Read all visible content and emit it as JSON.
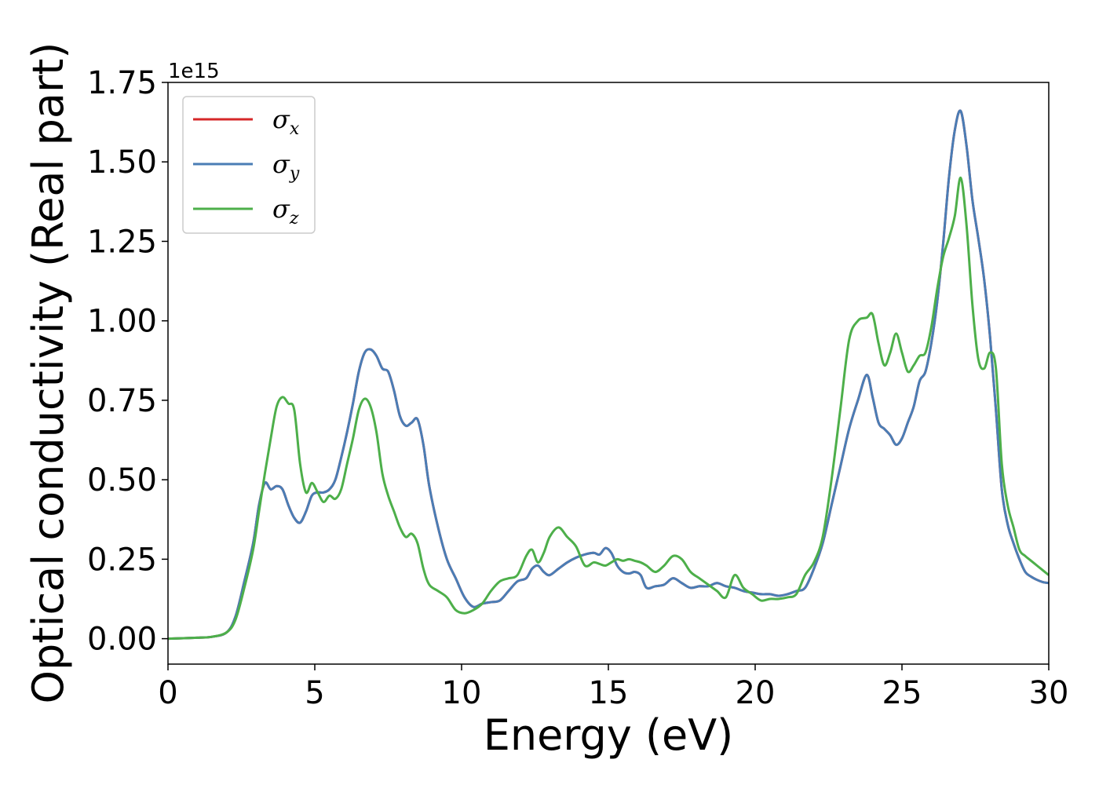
{
  "chart_data": {
    "type": "line",
    "xlabel": "Energy (eV)",
    "ylabel": "Optical conductivity (Real part)",
    "y_offset_text": "1e15",
    "xlim": [
      0,
      30
    ],
    "ylim": [
      -0.08,
      1.75
    ],
    "x_ticks": [
      0,
      5,
      10,
      15,
      20,
      25,
      30
    ],
    "x_tick_labels": [
      "0",
      "5",
      "10",
      "15",
      "20",
      "25",
      "30"
    ],
    "y_ticks": [
      0,
      0.25,
      0.5,
      0.75,
      1.0,
      1.25,
      1.5,
      1.75
    ],
    "y_tick_labels": [
      "0.00",
      "0.25",
      "0.50",
      "0.75",
      "1.00",
      "1.25",
      "1.50",
      "1.75"
    ],
    "grid": false,
    "legend_position": "top-left",
    "series": [
      {
        "name": "σx",
        "symbol": "σ",
        "subscript": "x",
        "color": "#d62728",
        "x": [
          0,
          1,
          1.5,
          2,
          2.3,
          2.6,
          2.9,
          3.1,
          3.3,
          3.5,
          3.7,
          3.9,
          4.1,
          4.3,
          4.5,
          4.7,
          4.9,
          5.1,
          5.3,
          5.5,
          5.7,
          5.9,
          6.1,
          6.3,
          6.5,
          6.7,
          6.9,
          7.1,
          7.3,
          7.5,
          7.7,
          7.9,
          8.1,
          8.3,
          8.5,
          8.7,
          8.9,
          9.2,
          9.5,
          9.8,
          10.1,
          10.4,
          10.7,
          11.0,
          11.3,
          11.6,
          11.9,
          12.2,
          12.4,
          12.6,
          12.8,
          13.0,
          13.3,
          13.6,
          13.9,
          14.2,
          14.5,
          14.7,
          14.9,
          15.1,
          15.3,
          15.5,
          15.7,
          15.9,
          16.1,
          16.3,
          16.6,
          16.9,
          17.2,
          17.5,
          17.8,
          18.1,
          18.4,
          18.7,
          19.0,
          19.3,
          19.6,
          19.9,
          20.2,
          20.5,
          20.8,
          21.1,
          21.4,
          21.7,
          22.0,
          22.3,
          22.6,
          22.9,
          23.2,
          23.5,
          23.8,
          24.0,
          24.2,
          24.4,
          24.6,
          24.8,
          25.0,
          25.2,
          25.4,
          25.6,
          25.8,
          26.0,
          26.2,
          26.4,
          26.6,
          26.8,
          27.0,
          27.2,
          27.4,
          27.6,
          27.8,
          28.0,
          28.2,
          28.4,
          28.6,
          28.8,
          29.0,
          29.2,
          29.4,
          29.6,
          29.8,
          30
        ],
        "values": [
          0,
          0.003,
          0.006,
          0.02,
          0.07,
          0.18,
          0.3,
          0.42,
          0.49,
          0.47,
          0.48,
          0.47,
          0.42,
          0.38,
          0.365,
          0.4,
          0.45,
          0.46,
          0.46,
          0.47,
          0.5,
          0.57,
          0.65,
          0.74,
          0.84,
          0.9,
          0.91,
          0.89,
          0.85,
          0.84,
          0.78,
          0.7,
          0.67,
          0.68,
          0.69,
          0.61,
          0.48,
          0.35,
          0.25,
          0.19,
          0.13,
          0.1,
          0.11,
          0.115,
          0.12,
          0.15,
          0.18,
          0.19,
          0.22,
          0.23,
          0.21,
          0.2,
          0.22,
          0.24,
          0.255,
          0.265,
          0.27,
          0.265,
          0.285,
          0.27,
          0.23,
          0.21,
          0.205,
          0.21,
          0.2,
          0.16,
          0.165,
          0.17,
          0.19,
          0.175,
          0.16,
          0.165,
          0.165,
          0.175,
          0.165,
          0.16,
          0.15,
          0.145,
          0.14,
          0.14,
          0.135,
          0.14,
          0.15,
          0.16,
          0.22,
          0.3,
          0.42,
          0.54,
          0.66,
          0.75,
          0.83,
          0.76,
          0.68,
          0.66,
          0.64,
          0.61,
          0.63,
          0.68,
          0.73,
          0.81,
          0.84,
          0.93,
          1.06,
          1.24,
          1.45,
          1.6,
          1.66,
          1.55,
          1.38,
          1.26,
          1.13,
          0.95,
          0.72,
          0.47,
          0.36,
          0.3,
          0.25,
          0.21,
          0.195,
          0.185,
          0.178,
          0.175
        ]
      },
      {
        "name": "σy",
        "symbol": "σ",
        "subscript": "y",
        "color": "#4a7db5",
        "x": [
          0,
          1,
          1.5,
          2,
          2.3,
          2.6,
          2.9,
          3.1,
          3.3,
          3.5,
          3.7,
          3.9,
          4.1,
          4.3,
          4.5,
          4.7,
          4.9,
          5.1,
          5.3,
          5.5,
          5.7,
          5.9,
          6.1,
          6.3,
          6.5,
          6.7,
          6.9,
          7.1,
          7.3,
          7.5,
          7.7,
          7.9,
          8.1,
          8.3,
          8.5,
          8.7,
          8.9,
          9.2,
          9.5,
          9.8,
          10.1,
          10.4,
          10.7,
          11.0,
          11.3,
          11.6,
          11.9,
          12.2,
          12.4,
          12.6,
          12.8,
          13.0,
          13.3,
          13.6,
          13.9,
          14.2,
          14.5,
          14.7,
          14.9,
          15.1,
          15.3,
          15.5,
          15.7,
          15.9,
          16.1,
          16.3,
          16.6,
          16.9,
          17.2,
          17.5,
          17.8,
          18.1,
          18.4,
          18.7,
          19.0,
          19.3,
          19.6,
          19.9,
          20.2,
          20.5,
          20.8,
          21.1,
          21.4,
          21.7,
          22.0,
          22.3,
          22.6,
          22.9,
          23.2,
          23.5,
          23.8,
          24.0,
          24.2,
          24.4,
          24.6,
          24.8,
          25.0,
          25.2,
          25.4,
          25.6,
          25.8,
          26.0,
          26.2,
          26.4,
          26.6,
          26.8,
          27.0,
          27.2,
          27.4,
          27.6,
          27.8,
          28.0,
          28.2,
          28.4,
          28.6,
          28.8,
          29.0,
          29.2,
          29.4,
          29.6,
          29.8,
          30
        ],
        "values": [
          0,
          0.003,
          0.006,
          0.02,
          0.07,
          0.18,
          0.3,
          0.42,
          0.49,
          0.47,
          0.48,
          0.47,
          0.42,
          0.38,
          0.365,
          0.4,
          0.45,
          0.46,
          0.46,
          0.47,
          0.5,
          0.57,
          0.65,
          0.74,
          0.84,
          0.9,
          0.91,
          0.89,
          0.85,
          0.84,
          0.78,
          0.7,
          0.67,
          0.68,
          0.69,
          0.61,
          0.48,
          0.35,
          0.25,
          0.19,
          0.13,
          0.1,
          0.11,
          0.115,
          0.12,
          0.15,
          0.18,
          0.19,
          0.22,
          0.23,
          0.21,
          0.2,
          0.22,
          0.24,
          0.255,
          0.265,
          0.27,
          0.265,
          0.285,
          0.27,
          0.23,
          0.21,
          0.205,
          0.21,
          0.2,
          0.16,
          0.165,
          0.17,
          0.19,
          0.175,
          0.16,
          0.165,
          0.165,
          0.175,
          0.165,
          0.16,
          0.15,
          0.145,
          0.14,
          0.14,
          0.135,
          0.14,
          0.15,
          0.16,
          0.22,
          0.3,
          0.42,
          0.54,
          0.66,
          0.75,
          0.83,
          0.76,
          0.68,
          0.66,
          0.64,
          0.61,
          0.63,
          0.68,
          0.73,
          0.81,
          0.84,
          0.93,
          1.06,
          1.24,
          1.45,
          1.6,
          1.66,
          1.55,
          1.38,
          1.26,
          1.13,
          0.95,
          0.72,
          0.47,
          0.36,
          0.3,
          0.25,
          0.21,
          0.195,
          0.185,
          0.178,
          0.175
        ]
      },
      {
        "name": "σz",
        "symbol": "σ",
        "subscript": "z",
        "color": "#4daf4a",
        "x": [
          0,
          1,
          1.5,
          2,
          2.3,
          2.6,
          2.9,
          3.1,
          3.3,
          3.5,
          3.7,
          3.9,
          4.1,
          4.3,
          4.5,
          4.7,
          4.9,
          5.1,
          5.3,
          5.5,
          5.7,
          5.9,
          6.1,
          6.3,
          6.5,
          6.7,
          6.9,
          7.1,
          7.3,
          7.5,
          7.7,
          7.9,
          8.1,
          8.3,
          8.5,
          8.7,
          8.9,
          9.2,
          9.5,
          9.8,
          10.1,
          10.4,
          10.7,
          11.0,
          11.3,
          11.6,
          11.9,
          12.2,
          12.4,
          12.6,
          12.8,
          13.0,
          13.3,
          13.6,
          13.9,
          14.2,
          14.5,
          14.7,
          14.9,
          15.1,
          15.3,
          15.5,
          15.7,
          15.9,
          16.1,
          16.3,
          16.6,
          16.9,
          17.2,
          17.5,
          17.8,
          18.1,
          18.4,
          18.7,
          19.0,
          19.3,
          19.6,
          19.9,
          20.2,
          20.5,
          20.8,
          21.1,
          21.4,
          21.7,
          22.0,
          22.3,
          22.6,
          22.9,
          23.2,
          23.5,
          23.8,
          24.0,
          24.2,
          24.4,
          24.6,
          24.8,
          25.0,
          25.2,
          25.4,
          25.6,
          25.8,
          26.0,
          26.2,
          26.4,
          26.6,
          26.8,
          27.0,
          27.2,
          27.4,
          27.6,
          27.8,
          28.0,
          28.2,
          28.4,
          28.6,
          28.8,
          29.0,
          29.2,
          29.4,
          29.6,
          29.8,
          30
        ],
        "values": [
          0,
          0.003,
          0.006,
          0.02,
          0.06,
          0.16,
          0.28,
          0.4,
          0.52,
          0.63,
          0.73,
          0.76,
          0.74,
          0.72,
          0.55,
          0.46,
          0.49,
          0.46,
          0.43,
          0.45,
          0.44,
          0.47,
          0.55,
          0.63,
          0.72,
          0.755,
          0.73,
          0.65,
          0.52,
          0.45,
          0.4,
          0.35,
          0.32,
          0.33,
          0.3,
          0.22,
          0.17,
          0.15,
          0.13,
          0.09,
          0.08,
          0.09,
          0.11,
          0.15,
          0.18,
          0.19,
          0.2,
          0.26,
          0.28,
          0.24,
          0.27,
          0.32,
          0.35,
          0.32,
          0.29,
          0.23,
          0.24,
          0.235,
          0.23,
          0.24,
          0.25,
          0.245,
          0.25,
          0.245,
          0.24,
          0.23,
          0.21,
          0.23,
          0.26,
          0.25,
          0.21,
          0.19,
          0.17,
          0.15,
          0.13,
          0.2,
          0.16,
          0.14,
          0.12,
          0.125,
          0.125,
          0.13,
          0.14,
          0.2,
          0.24,
          0.32,
          0.5,
          0.72,
          0.94,
          1.0,
          1.01,
          1.02,
          0.93,
          0.86,
          0.9,
          0.96,
          0.9,
          0.84,
          0.86,
          0.89,
          0.9,
          0.98,
          1.1,
          1.2,
          1.26,
          1.33,
          1.45,
          1.3,
          1.05,
          0.88,
          0.85,
          0.9,
          0.85,
          0.55,
          0.42,
          0.35,
          0.28,
          0.26,
          0.245,
          0.23,
          0.215,
          0.2
        ]
      }
    ]
  }
}
